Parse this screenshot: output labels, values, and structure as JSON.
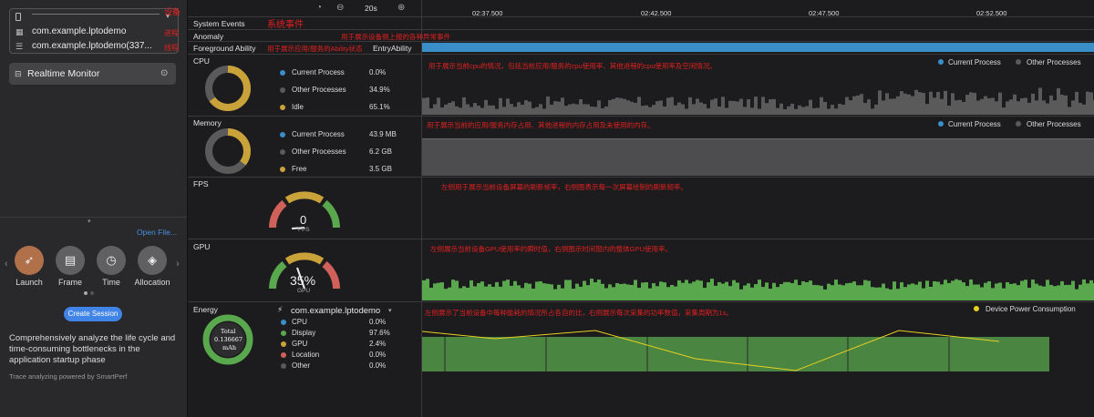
{
  "device": {
    "selected_device": "",
    "processes": [
      "com.example.lptodemo",
      "com.example.lptodemo(337..."
    ],
    "note_device": "设备",
    "note_process": "进程",
    "note_thread": "线程"
  },
  "realtime_monitor": "Realtime Monitor",
  "open_file": "Open File...",
  "tools": [
    {
      "label": "Launch"
    },
    {
      "label": "Frame"
    },
    {
      "label": "Time"
    },
    {
      "label": "Allocation"
    }
  ],
  "create_session": "Create Session",
  "description": "Comprehensively analyze the life cycle and time-consuming bottlenecks in the application startup phase",
  "powered_by": "Trace analyzing powered by SmartPerf",
  "timeline": {
    "zoom": "20s",
    "ticks": [
      "02:37.500",
      "02:42.500",
      "02:47.500",
      "02:52.500"
    ]
  },
  "tracks": {
    "system_events": "System Events",
    "system_events_note": "系统事件",
    "anomaly": "Anomaly",
    "anomaly_note": "用于展示设备侧上报的各种异常事件",
    "foreground": "Foreground Ability",
    "foreground_note": "用于展示应用/服务的Ability状态",
    "foreground_value": "EntryAbility"
  },
  "cpu": {
    "title": "CPU",
    "rows": [
      {
        "label": "Current Process",
        "value": "0.0%"
      },
      {
        "label": "Other Processes",
        "value": "34.9%"
      },
      {
        "label": "Idle",
        "value": "65.1%"
      }
    ],
    "note": "用于展示当前cpu的情况，包括当前应用/服务的cpu使用率、其他进程的cpu使用率及空闲情况。",
    "legend": [
      "Current Process",
      "Other Processes"
    ]
  },
  "memory": {
    "title": "Memory",
    "rows": [
      {
        "label": "Current Process",
        "value": "43.9 MB"
      },
      {
        "label": "Other Processes",
        "value": "6.2 GB"
      },
      {
        "label": "Free",
        "value": "3.5 GB"
      }
    ],
    "note": "用于展示当前的应用/服务内存占用、其他进程的内存占用及未使用的内存。",
    "legend": [
      "Current Process",
      "Other Processes"
    ]
  },
  "fps": {
    "title": "FPS",
    "value": "0",
    "unit": "FPS",
    "note": "左侧用于展示当前设备屏幕的刷新帧率，右侧图表示每一次屏幕绘制的刷新频率。"
  },
  "gpu": {
    "title": "GPU",
    "value": "35%",
    "unit": "GPU",
    "note": "左侧展示当前设备GPU使用率的瞬时值，右侧图示时间窗内的整体GPU使用率。"
  },
  "energy": {
    "title": "Energy",
    "total_label": "Total",
    "total_value": "0.136667",
    "total_unit": "mAh",
    "process": "com.example.lptodemo",
    "rows": [
      {
        "label": "CPU",
        "value": "0.0%"
      },
      {
        "label": "Display",
        "value": "97.6%"
      },
      {
        "label": "GPU",
        "value": "2.4%"
      },
      {
        "label": "Location",
        "value": "0.0%"
      },
      {
        "label": "Other",
        "value": "0.0%"
      }
    ],
    "note": "左侧展示了当前设备中每种能耗的情况所占各自的比，右侧展示每次采集的功率数值，采集周期为1s。",
    "legend": "Device Power Consumption"
  },
  "colors": {
    "blue": "#3a8fc9",
    "gray": "#5a5a5a",
    "gold": "#c9a23a",
    "green": "#5aa84e",
    "red": "#d0605a",
    "yellow": "#e8d020"
  }
}
